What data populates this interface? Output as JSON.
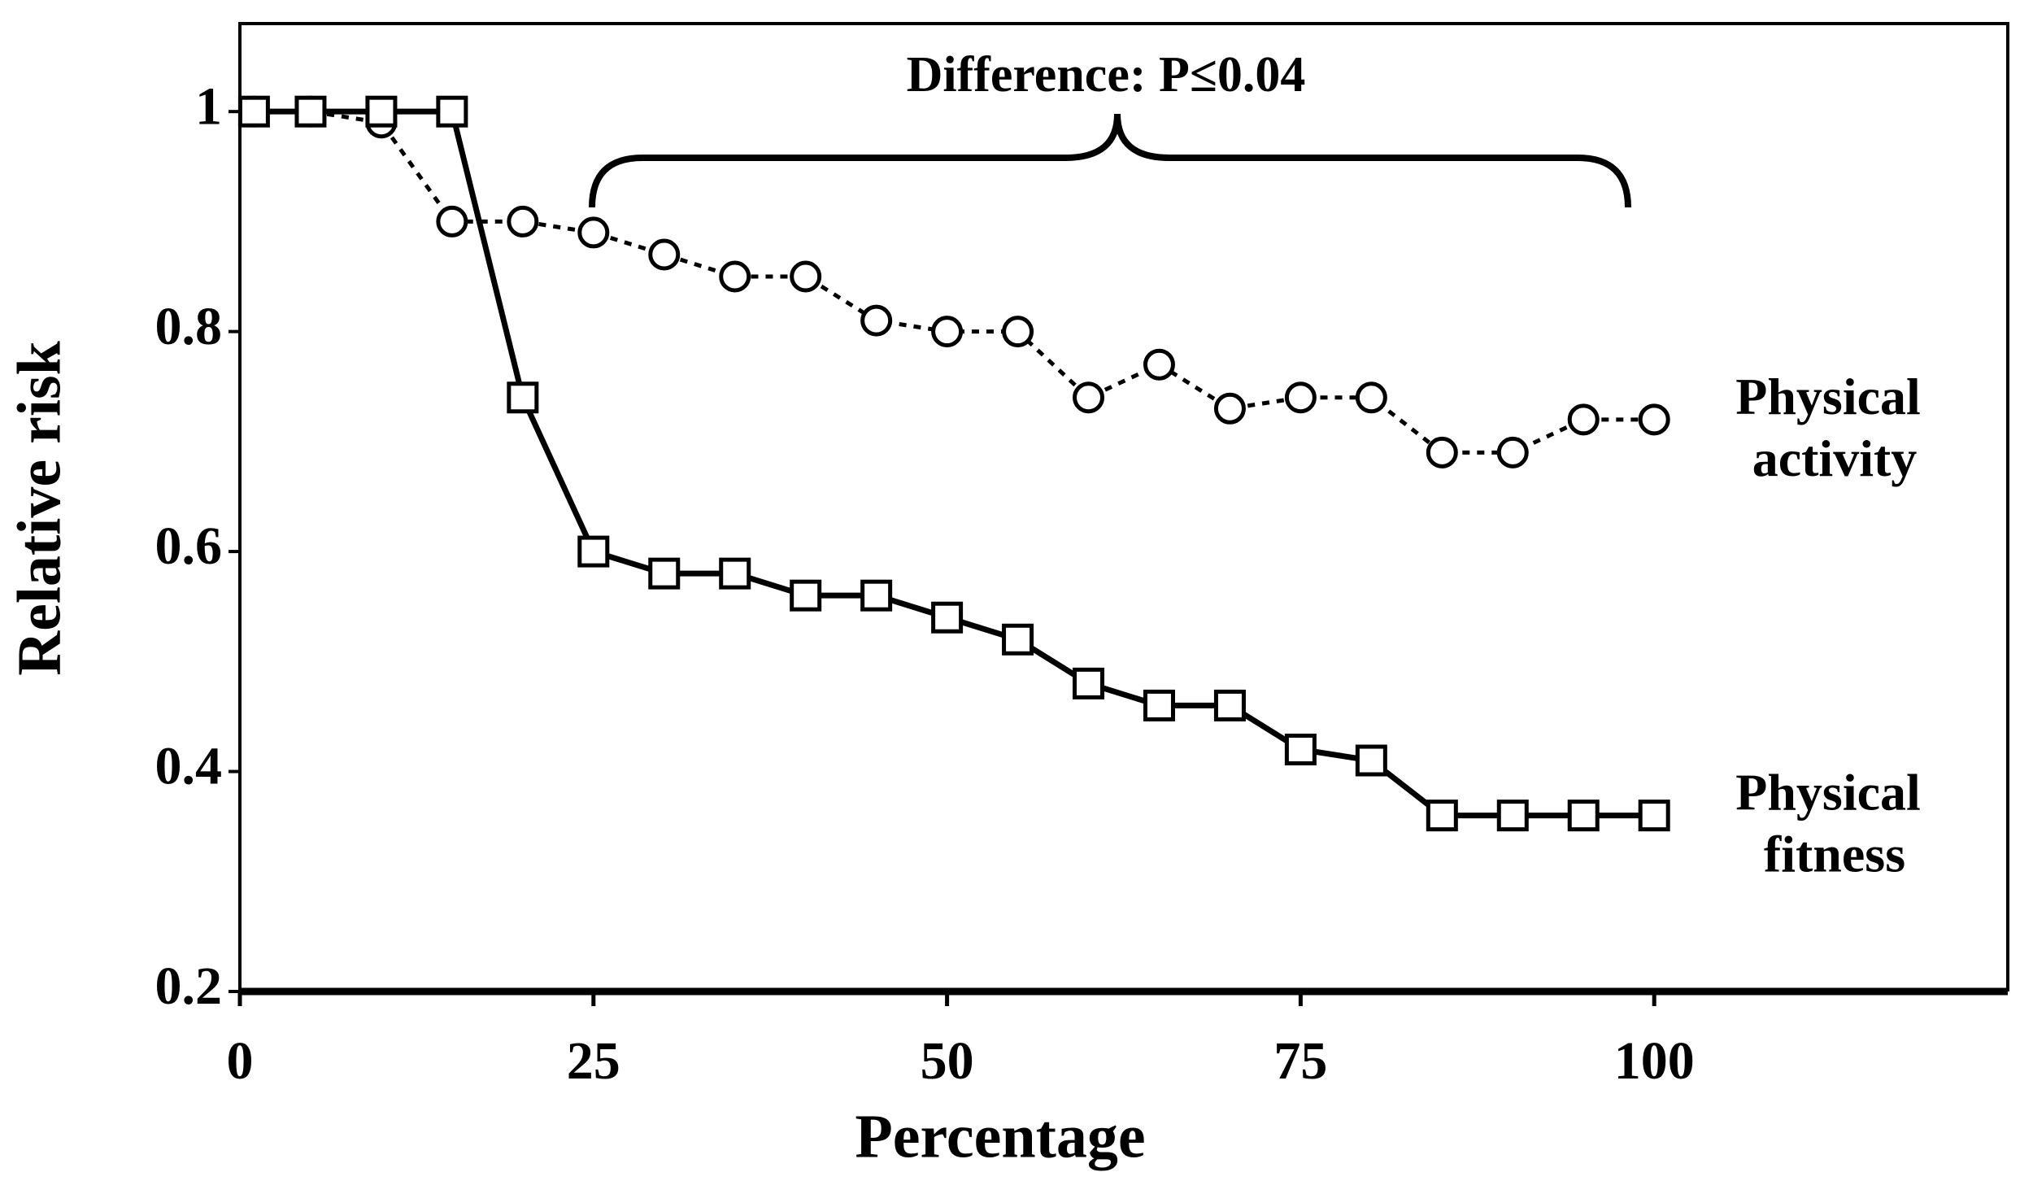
{
  "chart_data": {
    "type": "line",
    "annotation": "Difference: P≤0.04",
    "xlabel": "Percentage",
    "ylabel": "Relative risk",
    "x": [
      1,
      5,
      10,
      15,
      20,
      25,
      30,
      35,
      40,
      45,
      50,
      55,
      60,
      65,
      70,
      75,
      80,
      85,
      90,
      95,
      100
    ],
    "series": [
      {
        "name": "Physical activity",
        "color": "#000000",
        "marker": "circle",
        "dashed": true,
        "values": [
          1,
          1,
          0.99,
          0.9,
          0.9,
          0.89,
          0.87,
          0.85,
          0.85,
          0.81,
          0.8,
          0.8,
          0.74,
          0.77,
          0.73,
          0.74,
          0.74,
          0.69,
          0.69,
          0.72,
          0.72
        ]
      },
      {
        "name": "Physical fitness",
        "color": "#000000",
        "marker": "square",
        "dashed": false,
        "values": [
          1,
          1,
          1,
          1,
          0.74,
          0.6,
          0.58,
          0.58,
          0.56,
          0.56,
          0.54,
          0.52,
          0.48,
          0.46,
          0.46,
          0.42,
          0.41,
          0.36,
          0.36,
          0.36,
          0.36
        ]
      }
    ],
    "xlim": [
      0,
      125
    ],
    "ylim": [
      0.2,
      1.08
    ],
    "xticks": [
      0,
      25,
      50,
      75,
      100
    ],
    "yticks": [
      0.2,
      0.4,
      0.6,
      0.8,
      1
    ]
  }
}
